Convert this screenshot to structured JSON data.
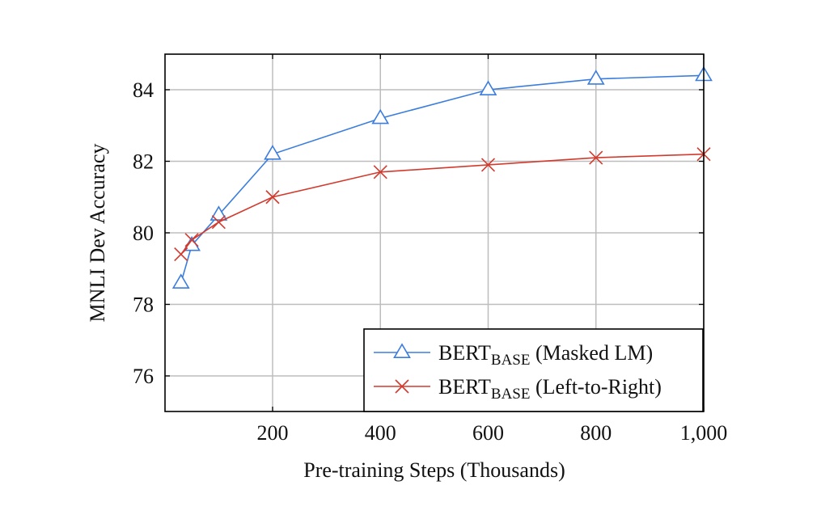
{
  "chart_data": {
    "type": "line",
    "title": "",
    "xlabel": "Pre-training Steps (Thousands)",
    "ylabel": "MNLI Dev Accuracy",
    "xlim": [
      0,
      1000
    ],
    "ylim": [
      75,
      85
    ],
    "x_ticks": [
      200,
      400,
      600,
      800,
      1000
    ],
    "x_tick_labels": [
      "200",
      "400",
      "600",
      "800",
      "1,000"
    ],
    "y_ticks": [
      76,
      78,
      80,
      82,
      84
    ],
    "y_tick_labels": [
      "76",
      "78",
      "80",
      "82",
      "84"
    ],
    "grid": true,
    "legend_position": "bottom-right",
    "series": [
      {
        "name_main": "BERT",
        "name_sub": "BASE",
        "name_tail": " (Masked LM)",
        "color": "#3b7ddd",
        "marker": "triangle",
        "x": [
          30,
          50,
          100,
          200,
          400,
          600,
          800,
          1000
        ],
        "y": [
          78.6,
          79.65,
          80.5,
          82.2,
          83.2,
          84.0,
          84.3,
          84.4
        ]
      },
      {
        "name_main": "BERT",
        "name_sub": "BASE",
        "name_tail": " (Left-to-Right)",
        "color": "#d23a2e",
        "marker": "cross",
        "x": [
          30,
          50,
          100,
          200,
          400,
          600,
          800,
          1000
        ],
        "y": [
          79.4,
          79.8,
          80.3,
          81.0,
          81.7,
          81.9,
          82.1,
          82.2
        ]
      }
    ]
  }
}
